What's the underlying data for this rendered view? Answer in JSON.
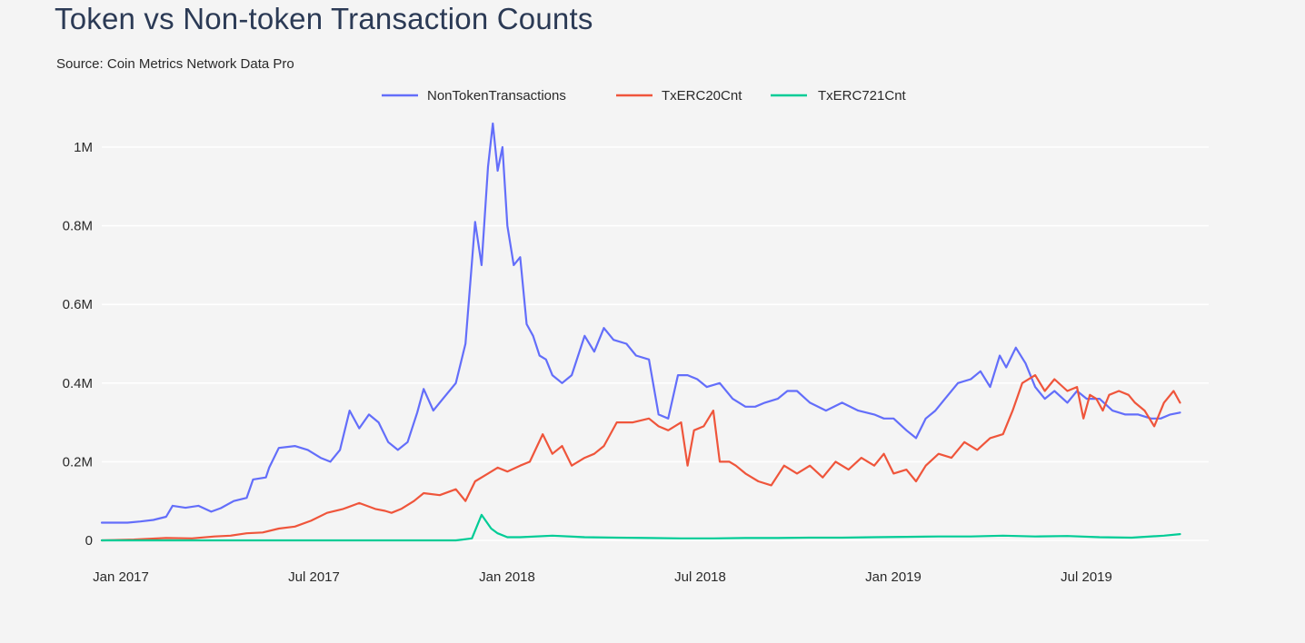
{
  "title": "Token vs Non-token Transaction Counts",
  "subtitle": "Source: Coin Metrics Network Data Pro",
  "chart_data": {
    "type": "line",
    "title": "Token vs Non-token Transaction Counts",
    "xlabel": "",
    "ylabel": "",
    "xlim": [
      0,
      34
    ],
    "ylim": [
      0,
      1100000
    ],
    "grid": true,
    "legend_position": "top-center",
    "y_ticks": [
      {
        "value": 0,
        "label": "0"
      },
      {
        "value": 200000,
        "label": "0.2M"
      },
      {
        "value": 400000,
        "label": "0.4M"
      },
      {
        "value": 600000,
        "label": "0.6M"
      },
      {
        "value": 800000,
        "label": "0.8M"
      },
      {
        "value": 1000000,
        "label": "1M"
      }
    ],
    "x_ticks": [
      {
        "value": 0,
        "label": "Jan 2017"
      },
      {
        "value": 6,
        "label": "Jul 2017"
      },
      {
        "value": 12,
        "label": "Jan 2018"
      },
      {
        "value": 18,
        "label": "Jul 2018"
      },
      {
        "value": 24,
        "label": "Jan 2019"
      },
      {
        "value": 30,
        "label": "Jul 2019"
      }
    ],
    "x_unit": "months since Jan 2017",
    "series": [
      {
        "name": "NonTokenTransactions",
        "color": "#636efa",
        "x": [
          -0.4,
          0,
          0.8,
          1.2,
          1.6,
          2,
          2.2,
          2.6,
          3,
          3.4,
          3.7,
          4.1,
          4.5,
          4.7,
          5.1,
          5.2,
          5.5,
          6,
          6.4,
          6.8,
          7.1,
          7.4,
          7.7,
          8,
          8.3,
          8.6,
          8.9,
          9.2,
          9.5,
          9.8,
          10,
          10.3,
          10.6,
          11,
          11.3,
          11.6,
          11.8,
          12,
          12.15,
          12.3,
          12.45,
          12.6,
          12.8,
          13,
          13.2,
          13.4,
          13.6,
          13.8,
          14,
          14.3,
          14.6,
          15,
          15.3,
          15.6,
          15.9,
          16.3,
          16.6,
          17,
          17.3,
          17.6,
          17.9,
          18.2,
          18.5,
          18.8,
          19.2,
          19.6,
          20,
          20.3,
          20.6,
          21,
          21.3,
          21.6,
          22,
          22.5,
          23,
          23.5,
          24,
          24.3,
          24.6,
          25,
          25.3,
          25.6,
          25.9,
          26.2,
          26.6,
          27,
          27.3,
          27.6,
          27.9,
          28.1,
          28.4,
          28.7,
          29,
          29.3,
          29.6,
          30,
          30.3,
          30.6,
          31,
          31.4,
          31.8,
          32.2,
          32.6,
          32.9,
          33.2,
          33.5
        ],
        "values": [
          45000,
          45000,
          45000,
          48000,
          52000,
          60000,
          88000,
          83000,
          88000,
          73000,
          82000,
          100000,
          108000,
          155000,
          160000,
          185000,
          235000,
          240000,
          230000,
          210000,
          200000,
          230000,
          330000,
          285000,
          320000,
          300000,
          250000,
          230000,
          250000,
          325000,
          385000,
          330000,
          360000,
          400000,
          500000,
          810000,
          700000,
          950000,
          1060000,
          940000,
          1000000,
          800000,
          700000,
          720000,
          550000,
          520000,
          470000,
          460000,
          420000,
          400000,
          420000,
          520000,
          480000,
          540000,
          510000,
          500000,
          470000,
          460000,
          320000,
          310000,
          420000,
          420000,
          410000,
          390000,
          400000,
          360000,
          340000,
          340000,
          350000,
          360000,
          380000,
          380000,
          350000,
          330000,
          350000,
          330000,
          320000,
          310000,
          310000,
          280000,
          260000,
          310000,
          330000,
          360000,
          400000,
          410000,
          430000,
          390000,
          470000,
          440000,
          490000,
          450000,
          390000,
          360000,
          380000,
          350000,
          380000,
          360000,
          360000,
          330000,
          320000,
          320000,
          310000,
          310000,
          320000,
          325000
        ]
      },
      {
        "name": "TxERC20Cnt",
        "color": "#ef553b",
        "x": [
          -0.4,
          0,
          1,
          2,
          2.8,
          3.5,
          4,
          4.5,
          5,
          5.5,
          6,
          6.5,
          7,
          7.5,
          8,
          8.5,
          8.8,
          9,
          9.3,
          9.7,
          10,
          10.5,
          11,
          11.3,
          11.6,
          12,
          12.3,
          12.6,
          13,
          13.3,
          13.7,
          14,
          14.3,
          14.6,
          15,
          15.3,
          15.6,
          16,
          16.5,
          17,
          17.3,
          17.6,
          18,
          18.2,
          18.4,
          18.7,
          19,
          19.2,
          19.5,
          19.7,
          20,
          20.4,
          20.8,
          21.2,
          21.6,
          22,
          22.4,
          22.8,
          23.2,
          23.6,
          24,
          24.3,
          24.6,
          25,
          25.3,
          25.6,
          26,
          26.4,
          26.8,
          27.2,
          27.6,
          28,
          28.3,
          28.6,
          29,
          29.3,
          29.6,
          30,
          30.3,
          30.5,
          30.7,
          30.9,
          31.1,
          31.3,
          31.6,
          31.9,
          32.1,
          32.4,
          32.7,
          33,
          33.3,
          33.5
        ],
        "values": [
          0,
          0,
          2000,
          6000,
          5000,
          10000,
          12000,
          18000,
          20000,
          30000,
          35000,
          50000,
          70000,
          80000,
          95000,
          80000,
          75000,
          70000,
          80000,
          100000,
          120000,
          115000,
          130000,
          100000,
          150000,
          170000,
          185000,
          175000,
          190000,
          200000,
          270000,
          220000,
          240000,
          190000,
          210000,
          220000,
          240000,
          300000,
          300000,
          310000,
          290000,
          280000,
          300000,
          190000,
          280000,
          290000,
          330000,
          200000,
          200000,
          190000,
          170000,
          150000,
          140000,
          190000,
          170000,
          190000,
          160000,
          200000,
          180000,
          210000,
          190000,
          220000,
          170000,
          180000,
          150000,
          190000,
          220000,
          210000,
          250000,
          230000,
          260000,
          270000,
          330000,
          400000,
          420000,
          380000,
          410000,
          380000,
          390000,
          310000,
          370000,
          360000,
          330000,
          370000,
          380000,
          370000,
          350000,
          330000,
          290000,
          350000,
          380000,
          350000
        ]
      },
      {
        "name": "TxERC721Cnt",
        "color": "#00cc96",
        "x": [
          -0.4,
          0,
          2,
          4,
          6,
          8,
          10,
          11,
          11.5,
          11.8,
          12.1,
          12.3,
          12.6,
          13,
          14,
          15,
          16,
          17,
          18,
          19,
          20,
          21,
          22,
          23,
          24,
          25,
          26,
          27,
          28,
          29,
          30,
          31,
          32,
          33,
          33.5
        ],
        "values": [
          0,
          0,
          0,
          0,
          0,
          0,
          0,
          0,
          5000,
          65000,
          30000,
          18000,
          8000,
          8000,
          12000,
          8000,
          7000,
          6000,
          5000,
          5000,
          6000,
          6000,
          7000,
          7000,
          8000,
          9000,
          10000,
          10000,
          12000,
          10000,
          11000,
          8000,
          7000,
          12000,
          16000
        ]
      }
    ]
  }
}
